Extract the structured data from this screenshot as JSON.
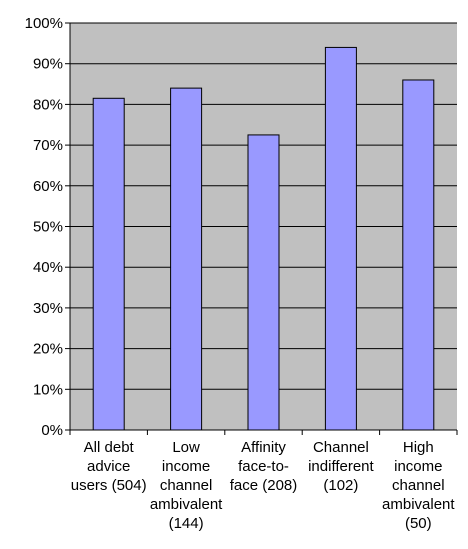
{
  "chart_data": {
    "type": "bar",
    "categories": [
      [
        "All debt",
        "advice",
        "users (504)"
      ],
      [
        "Low",
        "income",
        "channel",
        "ambivalent",
        "(144)"
      ],
      [
        "Affinity",
        "face-to-",
        "face (208)"
      ],
      [
        "Channel",
        "indifferent",
        "(102)"
      ],
      [
        "High",
        "income",
        "channel",
        "ambivalent",
        "(50)"
      ]
    ],
    "values": [
      81.5,
      84,
      72.5,
      94,
      86
    ],
    "y_ticks": [
      "0%",
      "10%",
      "20%",
      "30%",
      "40%",
      "50%",
      "60%",
      "70%",
      "80%",
      "90%",
      "100%"
    ],
    "ylim": [
      0,
      100
    ],
    "grid": true,
    "colors": {
      "bar": "#9999ff",
      "plot_bg": "#c0c0c0",
      "gridline": "#000000"
    }
  }
}
